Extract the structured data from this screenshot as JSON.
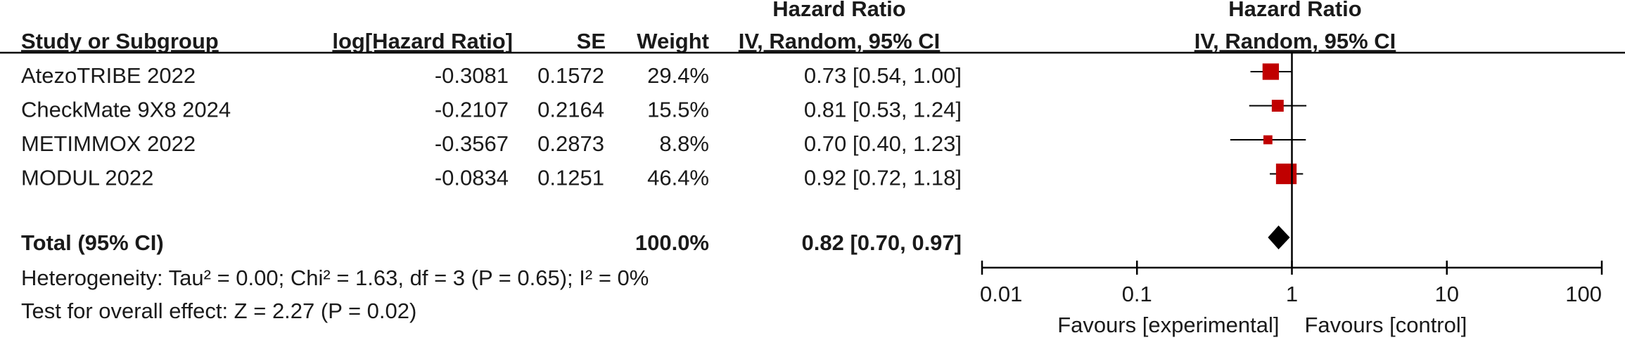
{
  "chart_data": {
    "type": "forest",
    "headers": {
      "study": "Study or Subgroup",
      "log_hr": "log[Hazard Ratio]",
      "se": "SE",
      "weight": "Weight",
      "effect_title": "Hazard Ratio",
      "effect_method": "IV, Random, 95% CI",
      "plot_title": "Hazard Ratio",
      "plot_method": "IV, Random, 95% CI"
    },
    "studies": [
      "AtezoTRIBE 2022",
      "CheckMate 9X8 2024",
      "METIMMOX 2022",
      "MODUL 2022"
    ],
    "log_hr": [
      -0.3081,
      -0.2107,
      -0.3567,
      -0.0834
    ],
    "se": [
      0.1572,
      0.2164,
      0.2873,
      0.1251
    ],
    "weight": [
      29.4,
      15.5,
      8.8,
      46.4
    ],
    "weight_labels": [
      "29.4%",
      "15.5%",
      "8.8%",
      "46.4%"
    ],
    "hr": [
      0.73,
      0.81,
      0.7,
      0.92
    ],
    "ci_lower": [
      0.54,
      0.53,
      0.4,
      0.72
    ],
    "ci_upper": [
      1.0,
      1.24,
      1.23,
      1.18
    ],
    "hr_labels": [
      "0.73 [0.54, 1.00]",
      "0.81 [0.53, 1.24]",
      "0.70 [0.40, 1.23]",
      "0.92 [0.72, 1.18]"
    ],
    "total": {
      "label": "Total (95% CI)",
      "weight": 100.0,
      "weight_label": "100.0%",
      "hr": 0.82,
      "ci_lower": 0.7,
      "ci_upper": 0.97,
      "hr_label": "0.82 [0.70, 0.97]"
    },
    "heterogeneity": "Heterogeneity: Tau² = 0.00; Chi² = 1.63, df = 3 (P = 0.65); I² = 0%",
    "overall_effect": "Test for overall effect: Z = 2.27 (P = 0.02)",
    "xscale": "log",
    "xlim": [
      0.01,
      100
    ],
    "xticks": [
      0.01,
      0.1,
      1,
      10,
      100
    ],
    "reference_line": 1,
    "xlabel_left": "Favours [experimental]",
    "xlabel_right": "Favours [control]",
    "marker_color": "#c00000",
    "diamond_color": "#000000"
  }
}
